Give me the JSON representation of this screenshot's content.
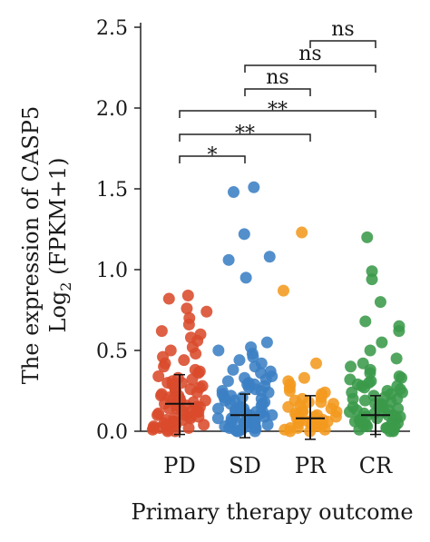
{
  "chart_data": {
    "type": "scatter",
    "subtype": "jitter-strip",
    "title": "",
    "xlabel": "Primary therapy outcome",
    "ylabel_line1": "The expression of CASP5",
    "ylabel_line2_pre": "Log",
    "ylabel_line2_sub": "2",
    "ylabel_line2_post": " (FPKM+1)",
    "ylim": [
      0,
      2.5
    ],
    "yticks": [
      "0.0",
      "0.5",
      "1.0",
      "1.5",
      "2.0",
      "2.5"
    ],
    "categories": [
      "PD",
      "SD",
      "PR",
      "CR"
    ],
    "grid": false,
    "legend": "none",
    "series": [
      {
        "color": "#d94a2b",
        "median": 0.17,
        "q1": -0.02,
        "q3": 0.35,
        "values": [
          0.84,
          0.82,
          0.76,
          0.74,
          0.7,
          0.66,
          0.62,
          0.6,
          0.58,
          0.56,
          0.52,
          0.5,
          0.48,
          0.46,
          0.44,
          0.42,
          0.4,
          0.38,
          0.37,
          0.36,
          0.34,
          0.33,
          0.32,
          0.31,
          0.3,
          0.29,
          0.28,
          0.27,
          0.26,
          0.25,
          0.24,
          0.23,
          0.22,
          0.21,
          0.2,
          0.2,
          0.19,
          0.18,
          0.18,
          0.17,
          0.16,
          0.15,
          0.15,
          0.14,
          0.13,
          0.12,
          0.12,
          0.11,
          0.1,
          0.1,
          0.09,
          0.08,
          0.08,
          0.07,
          0.06,
          0.06,
          0.05,
          0.04,
          0.04,
          0.03,
          0.03,
          0.02,
          0.02,
          0.01,
          0.01,
          0.0,
          0.0,
          0.05,
          0.12,
          0.22,
          0.3,
          0.09,
          0.16,
          0.26,
          0.02,
          0.07,
          0.14,
          0.19
        ]
      },
      {
        "color": "#3b7fc4",
        "median": 0.1,
        "q1": -0.04,
        "q3": 0.23,
        "values": [
          1.51,
          1.48,
          1.22,
          1.08,
          1.06,
          0.95,
          0.55,
          0.52,
          0.5,
          0.48,
          0.46,
          0.44,
          0.42,
          0.4,
          0.38,
          0.36,
          0.34,
          0.33,
          0.31,
          0.3,
          0.29,
          0.28,
          0.27,
          0.26,
          0.25,
          0.24,
          0.23,
          0.22,
          0.21,
          0.2,
          0.19,
          0.18,
          0.17,
          0.16,
          0.15,
          0.15,
          0.14,
          0.13,
          0.12,
          0.12,
          0.11,
          0.1,
          0.1,
          0.09,
          0.09,
          0.08,
          0.08,
          0.07,
          0.07,
          0.06,
          0.06,
          0.05,
          0.05,
          0.04,
          0.04,
          0.03,
          0.03,
          0.02,
          0.02,
          0.01,
          0.01,
          0.0,
          0.0,
          0.0,
          0.06,
          0.13,
          0.21,
          0.29,
          0.37,
          0.02,
          0.11,
          0.17,
          0.25,
          0.08,
          0.14,
          0.04,
          0.19,
          0.32
        ]
      },
      {
        "color": "#f29a1f",
        "median": 0.08,
        "q1": -0.05,
        "q3": 0.22,
        "values": [
          1.23,
          0.87,
          0.42,
          0.33,
          0.31,
          0.29,
          0.27,
          0.25,
          0.24,
          0.23,
          0.21,
          0.2,
          0.19,
          0.18,
          0.17,
          0.16,
          0.15,
          0.14,
          0.13,
          0.12,
          0.11,
          0.1,
          0.09,
          0.09,
          0.08,
          0.07,
          0.07,
          0.06,
          0.05,
          0.05,
          0.04,
          0.04,
          0.03,
          0.03,
          0.02,
          0.02,
          0.01,
          0.01,
          0.0,
          0.0,
          0.06,
          0.12,
          0.18,
          0.1,
          0.03
        ]
      },
      {
        "color": "#3a9a4a",
        "median": 0.1,
        "q1": -0.02,
        "q3": 0.22,
        "values": [
          1.2,
          0.99,
          0.94,
          0.8,
          0.68,
          0.65,
          0.62,
          0.55,
          0.5,
          0.45,
          0.42,
          0.4,
          0.38,
          0.36,
          0.34,
          0.33,
          0.32,
          0.31,
          0.3,
          0.29,
          0.28,
          0.27,
          0.26,
          0.25,
          0.24,
          0.23,
          0.22,
          0.21,
          0.2,
          0.19,
          0.18,
          0.17,
          0.16,
          0.15,
          0.15,
          0.14,
          0.13,
          0.12,
          0.12,
          0.11,
          0.1,
          0.1,
          0.09,
          0.08,
          0.08,
          0.07,
          0.06,
          0.06,
          0.05,
          0.05,
          0.04,
          0.04,
          0.03,
          0.03,
          0.02,
          0.02,
          0.01,
          0.01,
          0.0,
          0.0,
          0.07,
          0.13,
          0.2,
          0.28,
          0.03,
          0.11,
          0.17,
          0.24,
          0.09,
          0.15
        ]
      }
    ],
    "comparisons": [
      {
        "from": "PD",
        "to": "SD",
        "label": "*",
        "level": 0
      },
      {
        "from": "PD",
        "to": "PR",
        "label": "**",
        "level": 1
      },
      {
        "from": "PD",
        "to": "CR",
        "label": "**",
        "level": 2
      },
      {
        "from": "SD",
        "to": "PR",
        "label": "ns",
        "level": 3
      },
      {
        "from": "SD",
        "to": "CR",
        "label": "ns",
        "level": 4
      },
      {
        "from": "PR",
        "to": "CR",
        "label": "ns",
        "level": 5
      }
    ]
  }
}
